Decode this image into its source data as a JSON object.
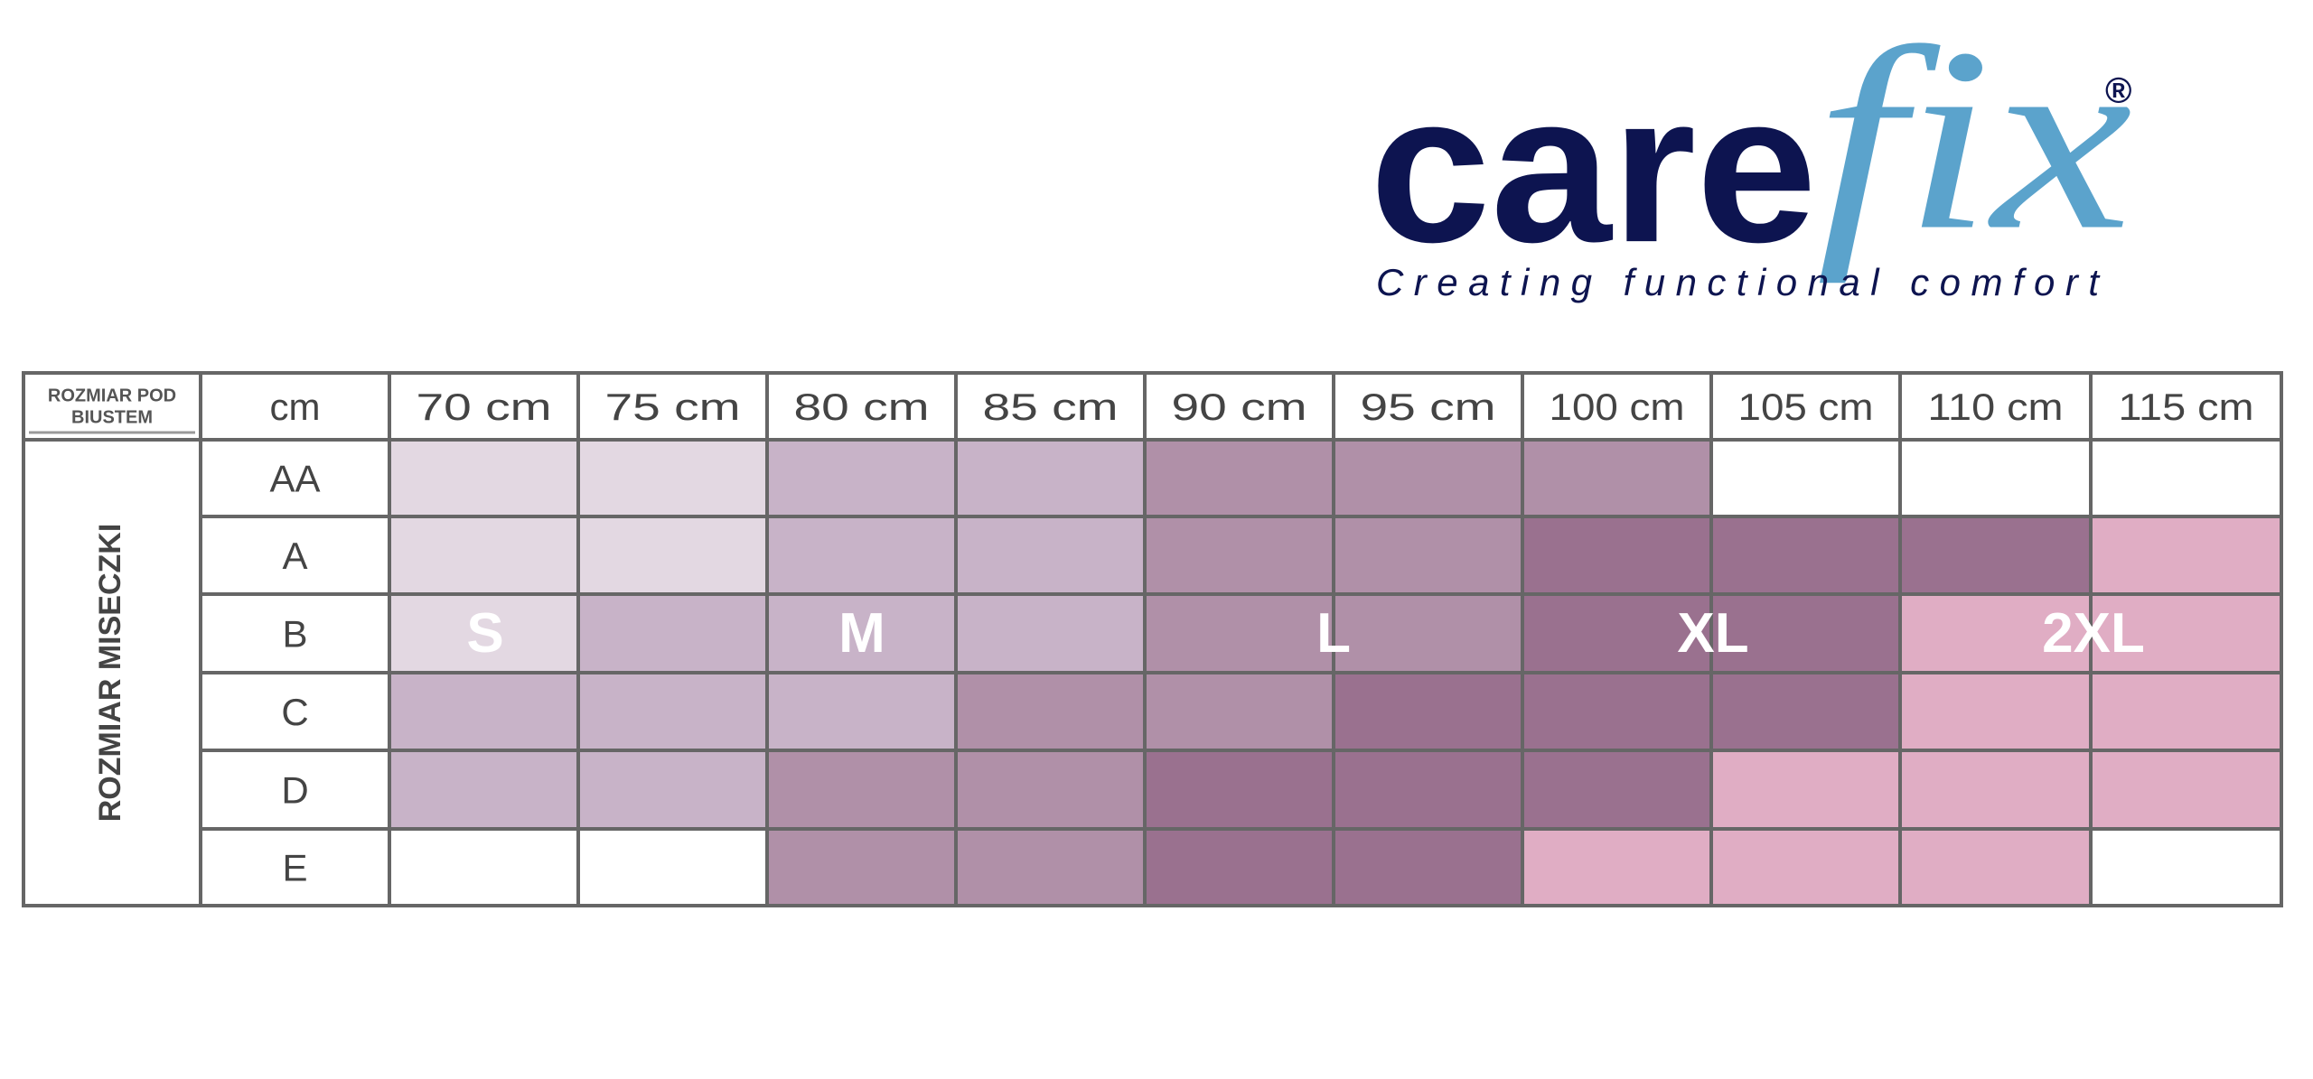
{
  "logo": {
    "care": "care",
    "fix": "fix",
    "registered": "®",
    "tagline": "Creating functional comfort"
  },
  "table": {
    "corner_label": [
      "ROZMIAR POD",
      "BIUSTEM"
    ],
    "unit_header": "cm",
    "columns": [
      "70 cm",
      "75 cm",
      "80 cm",
      "85 cm",
      "90 cm",
      "95 cm",
      "100 cm",
      "105 cm",
      "110 cm",
      "115 cm"
    ],
    "row_group_label": "ROZMIAR MISECZKI",
    "rows": [
      "AA",
      "A",
      "B",
      "C",
      "D",
      "E"
    ],
    "cell_colors": [
      [
        "#e3d8e2",
        "#e3d8e2",
        "#c8b3c8",
        "#c8b3c8",
        "#b090a8",
        "#b090a8",
        "#b090a8",
        "#ffffff",
        "#ffffff",
        "#ffffff"
      ],
      [
        "#e3d8e2",
        "#e3d8e2",
        "#c8b3c8",
        "#c8b3c8",
        "#b090a8",
        "#b090a8",
        "#9a718f",
        "#9a718f",
        "#9a718f",
        "#e0adc4"
      ],
      [
        "#e3d8e2",
        "#c8b3c8",
        "#c8b3c8",
        "#c8b3c8",
        "#b090a8",
        "#b090a8",
        "#9a718f",
        "#9a718f",
        "#e0adc4",
        "#e0adc4"
      ],
      [
        "#c8b3c8",
        "#c8b3c8",
        "#c8b3c8",
        "#b090a8",
        "#b090a8",
        "#9a718f",
        "#9a718f",
        "#9a718f",
        "#e0adc4",
        "#e0adc4"
      ],
      [
        "#c8b3c8",
        "#c8b3c8",
        "#b090a8",
        "#b090a8",
        "#9a718f",
        "#9a718f",
        "#9a718f",
        "#e0adc4",
        "#e0adc4",
        "#e0adc4"
      ],
      [
        "#ffffff",
        "#ffffff",
        "#b090a8",
        "#b090a8",
        "#9a718f",
        "#9a718f",
        "#e0adc4",
        "#e0adc4",
        "#e0adc4",
        "#ffffff"
      ]
    ],
    "size_labels": [
      "S",
      "M",
      "L",
      "XL",
      "2XL"
    ]
  }
}
